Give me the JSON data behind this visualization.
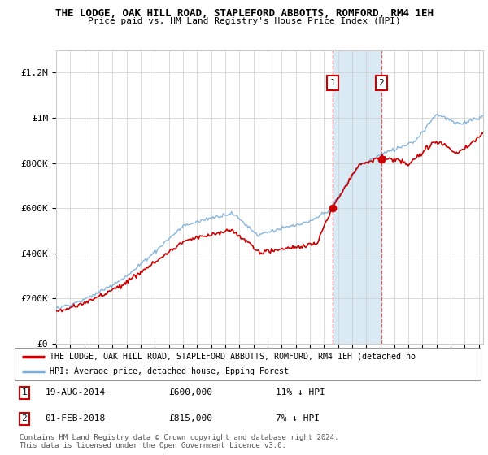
{
  "title": "THE LODGE, OAK HILL ROAD, STAPLEFORD ABBOTTS, ROMFORD, RM4 1EH",
  "subtitle": "Price paid vs. HM Land Registry's House Price Index (HPI)",
  "ylabel_ticks": [
    "£0",
    "£200K",
    "£400K",
    "£600K",
    "£800K",
    "£1M",
    "£1.2M"
  ],
  "ytick_vals": [
    0,
    200000,
    400000,
    600000,
    800000,
    1000000,
    1200000
  ],
  "ylim": [
    0,
    1300000
  ],
  "xlim_start": 1995.0,
  "xlim_end": 2025.3,
  "transaction1": {
    "date": 2014.63,
    "price": 600000,
    "label": "1",
    "note": "19-AUG-2014",
    "amount": "£600,000",
    "hpi_diff": "11% ↓ HPI"
  },
  "transaction2": {
    "date": 2018.08,
    "price": 815000,
    "label": "2",
    "note": "01-FEB-2018",
    "amount": "£815,000",
    "hpi_diff": "7% ↓ HPI"
  },
  "legend_line1": "THE LODGE, OAK HILL ROAD, STAPLEFORD ABBOTTS, ROMFORD, RM4 1EH (detached ho",
  "legend_line2": "HPI: Average price, detached house, Epping Forest",
  "footnote1": "Contains HM Land Registry data © Crown copyright and database right 2024.",
  "footnote2": "This data is licensed under the Open Government Licence v3.0.",
  "line_color_red": "#cc0000",
  "line_color_blue": "#7aadda",
  "shade_color": "#daeaf5",
  "background_color": "#ffffff",
  "grid_color": "#cccccc",
  "label_box_color": "#cc0000"
}
